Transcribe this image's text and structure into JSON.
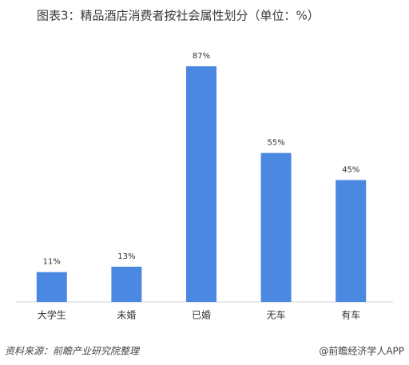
{
  "chart_data": {
    "type": "bar",
    "title": "图表3：精品酒店消费者按社会属性划分（单位：%）",
    "categories": [
      "大学生",
      "未婚",
      "已婚",
      "无车",
      "有车"
    ],
    "values": [
      11,
      13,
      87,
      55,
      45
    ],
    "value_labels": [
      "11%",
      "13%",
      "87%",
      "55%",
      "45%"
    ],
    "color": "#4a88e2"
  },
  "footer": {
    "source": "资料来源：前瞻产业研究院整理",
    "brand": "@前瞻经济学人APP"
  }
}
